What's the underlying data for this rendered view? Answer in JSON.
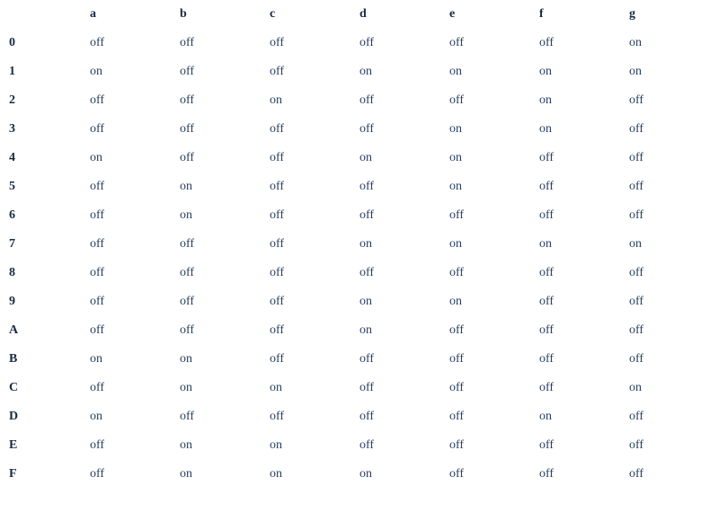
{
  "table": {
    "type": "table",
    "columns": [
      "a",
      "b",
      "c",
      "d",
      "e",
      "f",
      "g"
    ],
    "row_headers": [
      "0",
      "1",
      "2",
      "3",
      "4",
      "5",
      "6",
      "7",
      "8",
      "9",
      "A",
      "B",
      "C",
      "D",
      "E",
      "F"
    ],
    "rows": [
      [
        "off",
        "off",
        "off",
        "off",
        "off",
        "off",
        "on"
      ],
      [
        "on",
        "off",
        "off",
        "on",
        "on",
        "on",
        "on"
      ],
      [
        "off",
        "off",
        "on",
        "off",
        "off",
        "on",
        "off"
      ],
      [
        "off",
        "off",
        "off",
        "off",
        "on",
        "on",
        "off"
      ],
      [
        "on",
        "off",
        "off",
        "on",
        "on",
        "off",
        "off"
      ],
      [
        "off",
        "on",
        "off",
        "off",
        "on",
        "off",
        "off"
      ],
      [
        "off",
        "on",
        "off",
        "off",
        "off",
        "off",
        "off"
      ],
      [
        "off",
        "off",
        "off",
        "on",
        "on",
        "on",
        "on"
      ],
      [
        "off",
        "off",
        "off",
        "off",
        "off",
        "off",
        "off"
      ],
      [
        "off",
        "off",
        "off",
        "on",
        "on",
        "off",
        "off"
      ],
      [
        "off",
        "off",
        "off",
        "on",
        "off",
        "off",
        "off"
      ],
      [
        "on",
        "on",
        "off",
        "off",
        "off",
        "off",
        "off"
      ],
      [
        "off",
        "on",
        "on",
        "off",
        "off",
        "off",
        "on"
      ],
      [
        "on",
        "off",
        "off",
        "off",
        "off",
        "on",
        "off"
      ],
      [
        "off",
        "on",
        "on",
        "off",
        "off",
        "off",
        "off"
      ],
      [
        "off",
        "on",
        "on",
        "on",
        "off",
        "off",
        "off"
      ]
    ],
    "text_color": "#2a3f5f",
    "header_color": "#1a2a44",
    "background_color": "#ffffff",
    "font_family": "Georgia, serif",
    "cell_fontsize": 14,
    "header_fontweight": "bold"
  }
}
